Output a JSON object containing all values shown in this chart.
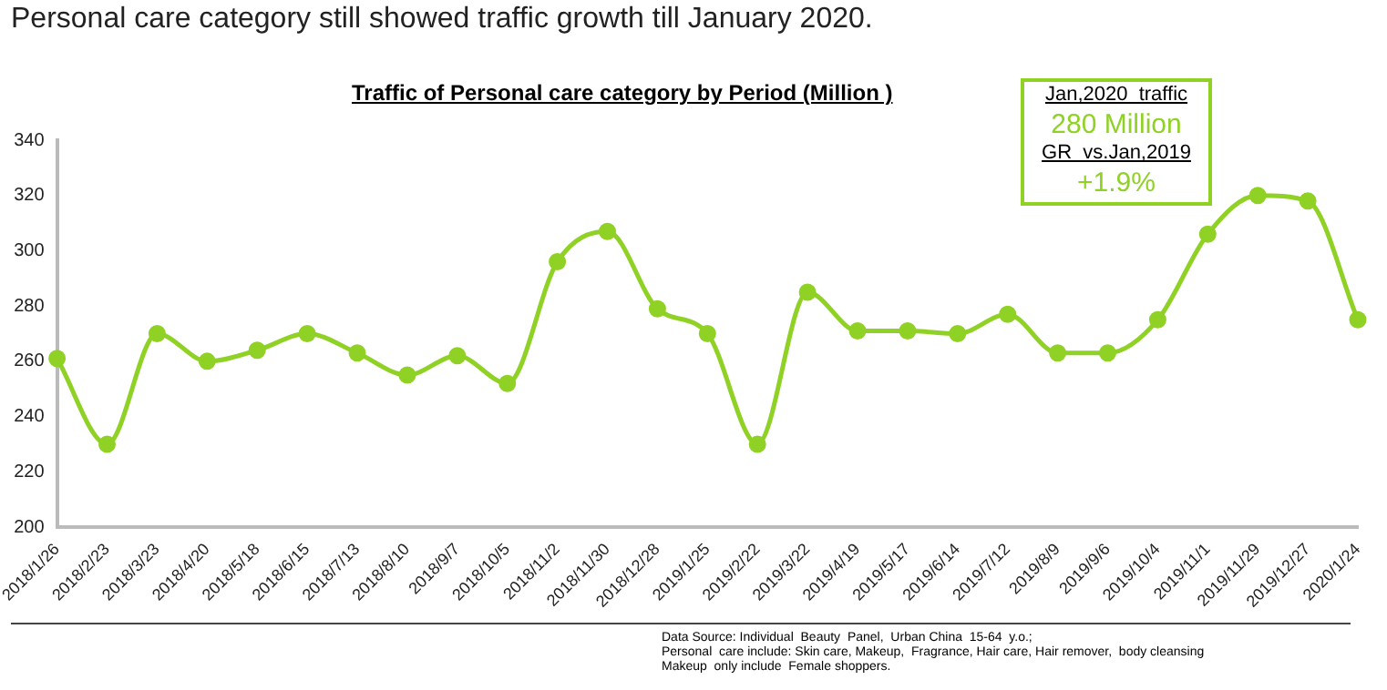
{
  "chart_data": {
    "type": "line",
    "title": "Personal care category still showed traffic growth till January 2020.",
    "subtitle": "Traffic of Personal care category by Period (Million )",
    "categories": [
      "2018/1/26",
      "2018/2/23",
      "2018/3/23",
      "2018/4/20",
      "2018/5/18",
      "2018/6/15",
      "2018/7/13",
      "2018/8/10",
      "2018/9/7",
      "2018/10/5",
      "2018/11/2",
      "2018/11/30",
      "2018/12/28",
      "2019/1/25",
      "2019/2/22",
      "2019/3/22",
      "2019/4/19",
      "2019/5/17",
      "2019/6/14",
      "2019/7/12",
      "2019/8/9",
      "2019/9/6",
      "2019/10/4",
      "2019/11/1",
      "2019/11/29",
      "2019/12/27",
      "2020/1/24"
    ],
    "series": [
      {
        "color": "#8fd124",
        "values": [
          261,
          230,
          270,
          260,
          264,
          270,
          263,
          255,
          262,
          252,
          296,
          307,
          279,
          270,
          230,
          285,
          271,
          271,
          270,
          277,
          263,
          263,
          275,
          306,
          320,
          318,
          275
        ]
      }
    ],
    "ylim": [
      200,
      340
    ],
    "yticks": [
      200,
      220,
      240,
      260,
      280,
      300,
      320,
      340
    ],
    "grid": false,
    "legend": false,
    "marker": "circle",
    "line_style": "solid",
    "annotations": [
      "Jan,2020  traffic",
      "280 Million",
      "GR  vs.Jan,2019",
      "+1.9%",
      "Data Source: Individual  Beauty  Panel,  Urban China  15-64  y.o.;\nPersonal  care include: Skin care, Makeup,  Fragrance, Hair care, Hair remover,  body cleansing\nMakeup  only include  Female shoppers."
    ]
  }
}
